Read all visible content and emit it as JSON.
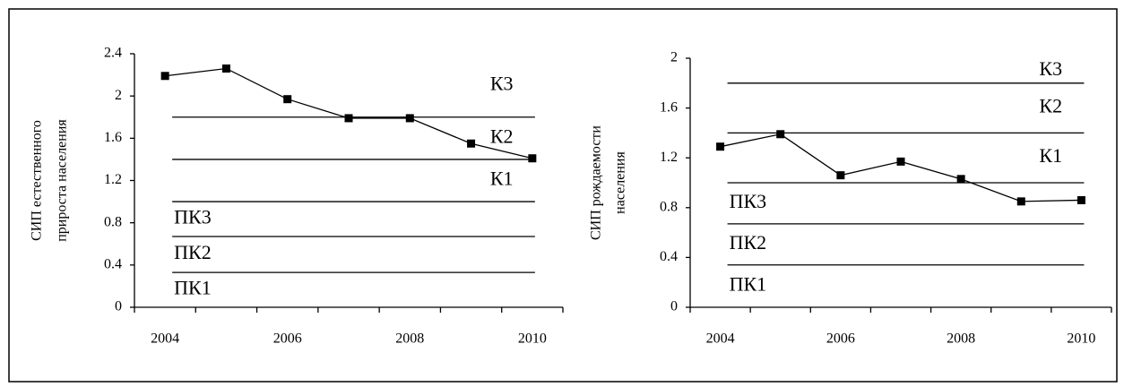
{
  "chart_data": [
    {
      "type": "line",
      "ylabel": [
        "СИП  естественного",
        "прироста населения"
      ],
      "categories": [
        "2004",
        null,
        "2006",
        null,
        "2008",
        null,
        "2010"
      ],
      "values": [
        2.19,
        2.26,
        1.97,
        1.79,
        1.79,
        1.55,
        1.41
      ],
      "color": "#000000",
      "ylim": [
        0,
        2.4
      ],
      "yticks": [
        0,
        0.4,
        0.8,
        1.2,
        1.6,
        2,
        2.4
      ],
      "thresholds": [
        0.33,
        0.67,
        1,
        1.4,
        1.8
      ],
      "zone_labels": [
        "ПК1",
        "ПК2",
        "ПК3",
        "К1",
        "К2",
        "К3"
      ]
    },
    {
      "type": "line",
      "ylabel": [
        "СИП  рождаемости",
        "населения"
      ],
      "categories": [
        "2004",
        null,
        "2006",
        null,
        "2008",
        null,
        "2010"
      ],
      "values": [
        1.29,
        1.39,
        1.06,
        1.17,
        1.03,
        0.85,
        0.86
      ],
      "color": "#000000",
      "ylim": [
        0,
        2
      ],
      "yticks": [
        0,
        0.4,
        0.8,
        1.2,
        1.6,
        2
      ],
      "thresholds": [
        0.34,
        0.67,
        1,
        1.4,
        1.8
      ],
      "zone_labels": [
        "ПК1",
        "ПК2",
        "ПК3",
        "К1",
        "К2",
        "К3"
      ]
    }
  ]
}
